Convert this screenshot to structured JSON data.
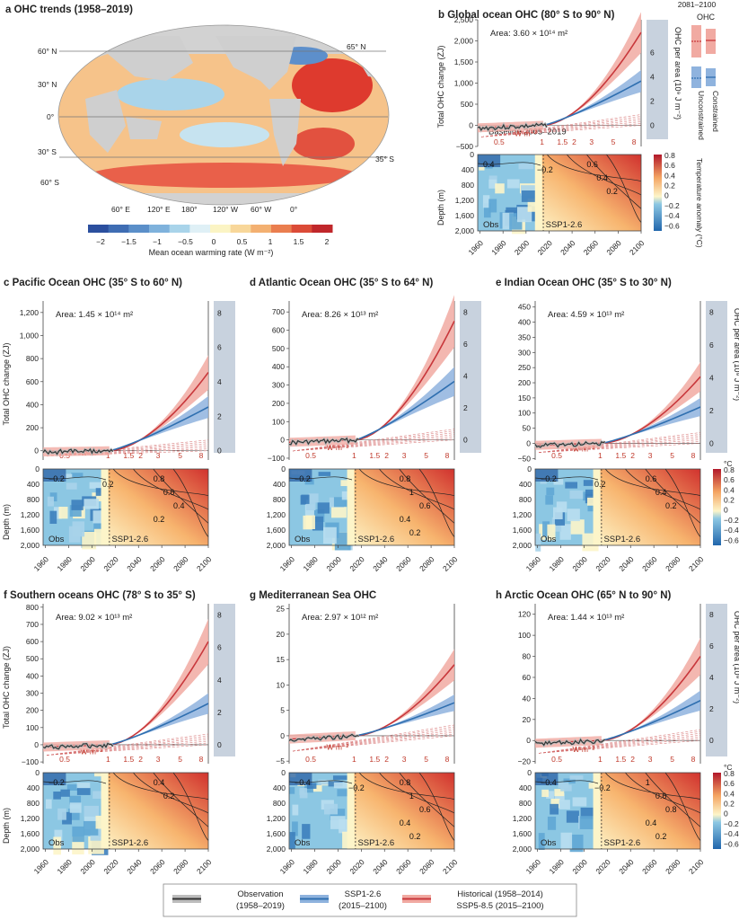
{
  "colors": {
    "obs": "#333333",
    "ssp126": "#2f6fb0",
    "ssp585": "#c8373b",
    "ssp126_band": "#8fb3de",
    "ssp585_band": "#f1aaa2",
    "ohc_panel": "#c8d2de"
  },
  "panel_a": {
    "title": "a OHC trends (1958–2019)",
    "lat_labels": [
      "60° N",
      "30° N",
      "0°",
      "30° S",
      "60° S"
    ],
    "lat_right": [
      "65° N",
      "35° S"
    ],
    "lon_labels": [
      "60° E",
      "120° E",
      "180°",
      "120° W",
      "60° W",
      "0°"
    ],
    "colorbar_ticks": [
      "−2",
      "−1.5",
      "−1",
      "−0.5",
      "0",
      "0.5",
      "1",
      "1.5",
      "2"
    ],
    "colorbar_label": "Mean ocean warming rate (W m⁻²)"
  },
  "shared": {
    "y_axis_label": "Total OHC change (ZJ)",
    "right_axis_label": "OHC per area (10⁹ J m⁻²)",
    "depth_label": "Depth (m)",
    "depth_ticks": [
      "0",
      "400",
      "800",
      "1,200",
      "1,600",
      "2,000"
    ],
    "x_ticks": [
      "1960",
      "1980",
      "2000",
      "2020",
      "2040",
      "2060",
      "2080",
      "2100"
    ],
    "obs_label": "Obs",
    "ssp_label": "SSP1-2.6",
    "w_unit": "W m⁻²",
    "w_lines": [
      "0.5",
      "1",
      "1.5",
      "2",
      "3",
      "5",
      "8"
    ],
    "temp_anom_label": "Temperature anomaly (°C)",
    "temp_unit": "°C",
    "temp_ticks": [
      "0.8",
      "0.6",
      "0.4",
      "0.2",
      "0",
      "−0.2",
      "−0.4",
      "−0.6"
    ],
    "legend_period": "2081–2100",
    "legend_ohc": "OHC",
    "legend_unconstrained": "Unconstrained",
    "legend_constrained": "Constrained"
  },
  "panels": [
    {
      "title": "b Global ocean OHC (80° S to 90° N)",
      "area": "Area: 3.60 × 10¹⁴ m²",
      "baseline": "Baseline 2005–2019",
      "y_ticks": [
        "−500",
        "0",
        "500",
        "1,000",
        "1,500",
        "2,000",
        "2,500"
      ],
      "y_vals": [
        -500,
        0,
        500,
        1000,
        1500,
        2000,
        2500
      ],
      "y_range": [
        -500,
        2500
      ],
      "r_ticks": [
        "0",
        "2",
        "4",
        "6"
      ],
      "r_vals": [
        0,
        2,
        4,
        6
      ],
      "ssp585_end": 2200,
      "ssp126_end": 1050,
      "contours_right": [
        "0.6",
        "0.4",
        "0.2"
      ],
      "contours_left": [
        "0.4",
        "−0.2"
      ]
    },
    {
      "title": "c Pacific Ocean OHC (35° S to 60° N)",
      "area": "Area: 1.45 × 10¹⁴ m²",
      "y_ticks": [
        "0",
        "200",
        "400",
        "600",
        "800",
        "1,000",
        "1,200"
      ],
      "y_vals": [
        0,
        200,
        400,
        600,
        800,
        1000,
        1200
      ],
      "y_range": [
        -80,
        1300
      ],
      "r_ticks": [
        "0",
        "2",
        "4",
        "6",
        "8"
      ],
      "r_vals": [
        0,
        2,
        4,
        6,
        8
      ],
      "ssp585_end": 680,
      "ssp126_end": 380,
      "contours_right": [
        "0.8",
        "0.6",
        "0.4",
        "0.2"
      ],
      "contours_left": [
        "−0.2",
        "0.2"
      ]
    },
    {
      "title": "d Atlantic Ocean OHC (35° S to 64° N)",
      "area": "Area: 8.26 × 10¹³ m²",
      "y_ticks": [
        "−100",
        "0",
        "100",
        "200",
        "300",
        "400",
        "500",
        "600",
        "700"
      ],
      "y_vals": [
        -100,
        0,
        100,
        200,
        300,
        400,
        500,
        600,
        700
      ],
      "y_range": [
        -110,
        760
      ],
      "r_ticks": [
        "0",
        "2",
        "4",
        "6",
        "8"
      ],
      "r_vals": [
        0,
        2,
        4,
        6,
        8
      ],
      "ssp585_end": 650,
      "ssp126_end": 320,
      "contours_right": [
        "0.8",
        "1",
        "0.6",
        "0.4",
        "0.2"
      ],
      "contours_left": [
        "−0.2"
      ]
    },
    {
      "title": "e Indian Ocean OHC (35° S to 30° N)",
      "area": "Area: 4.59 × 10¹³ m²",
      "y_ticks": [
        "−50",
        "0",
        "50",
        "100",
        "150",
        "200",
        "250",
        "300",
        "350",
        "400",
        "450"
      ],
      "y_vals": [
        -50,
        0,
        50,
        100,
        150,
        200,
        250,
        300,
        350,
        400,
        450
      ],
      "y_range": [
        -55,
        470
      ],
      "r_ticks": [
        "0",
        "2",
        "4",
        "6",
        "8"
      ],
      "r_vals": [
        0,
        2,
        4,
        6,
        8
      ],
      "ssp585_end": 220,
      "ssp126_end": 120,
      "contours_right": [
        "0.6",
        "0.4",
        "0.2"
      ],
      "contours_left": [
        "−0.2",
        "0.2"
      ]
    },
    {
      "title": "f Southern oceans OHC (78° S to 35° S)",
      "area": "Area: 9.02 × 10¹³ m²",
      "y_ticks": [
        "−100",
        "0",
        "100",
        "200",
        "300",
        "400",
        "500",
        "600",
        "700",
        "800"
      ],
      "y_vals": [
        -100,
        0,
        100,
        200,
        300,
        400,
        500,
        600,
        700,
        800
      ],
      "y_range": [
        -110,
        820
      ],
      "r_ticks": [
        "0",
        "2",
        "4",
        "6",
        "8"
      ],
      "r_vals": [
        0,
        2,
        4,
        6,
        8
      ],
      "ssp585_end": 600,
      "ssp126_end": 240,
      "contours_right": [
        "0.4",
        "0.2"
      ],
      "contours_left": [
        "−0.2"
      ]
    },
    {
      "title": "g Mediterranean Sea OHC",
      "area": "Area: 2.97 × 10¹² m²",
      "y_ticks": [
        "−5",
        "0",
        "5",
        "10",
        "15",
        "20",
        "25"
      ],
      "y_vals": [
        -5,
        0,
        5,
        10,
        15,
        20,
        25
      ],
      "y_range": [
        -5.5,
        26
      ],
      "r_ticks": [],
      "r_vals": [],
      "ssp585_end": 14,
      "ssp126_end": 6.5,
      "contours_right": [
        "0.8",
        "1",
        "0.6",
        "0.4",
        "0.2"
      ],
      "contours_left": [
        "−0.4",
        "−0.2"
      ]
    },
    {
      "title": "h Arctic Ocean OHC (65° N to 90° N)",
      "area": "Area: 1.44 × 10¹³ m²",
      "y_ticks": [
        "−20",
        "0",
        "20",
        "40",
        "60",
        "80",
        "100",
        "120"
      ],
      "y_vals": [
        -20,
        0,
        20,
        40,
        60,
        80,
        100,
        120
      ],
      "y_range": [
        -22,
        130
      ],
      "r_ticks": [
        "0",
        "2",
        "4",
        "6",
        "8"
      ],
      "r_vals": [
        0,
        2,
        4,
        6,
        8
      ],
      "ssp585_end": 80,
      "ssp126_end": 38,
      "contours_right": [
        "1",
        "0.6",
        "0.8",
        "0.4",
        "0.2"
      ],
      "contours_left": [
        "−0.4",
        "−0.2"
      ]
    }
  ],
  "legend": [
    {
      "label": "Observation",
      "sub": "(1958–2019)"
    },
    {
      "label": "SSP1-2.6",
      "sub": "(2015–2100)"
    },
    {
      "label": "Historical (1958–2014)",
      "sub": "SSP5-8.5 (2015–2100)"
    }
  ],
  "chart_data": [
    {
      "type": "line",
      "title": "b Global ocean OHC (80° S to 90° N)",
      "xlabel": "",
      "ylabel": "Total OHC change (ZJ)",
      "xlim": [
        1958,
        2100
      ],
      "ylim": [
        -500,
        2500
      ],
      "series": [
        {
          "name": "Observation",
          "x": [
            1958,
            1980,
            2000,
            2019
          ],
          "y": [
            -300,
            -250,
            -150,
            50
          ]
        },
        {
          "name": "SSP1-2.6",
          "x": [
            2015,
            2040,
            2060,
            2080,
            2100
          ],
          "y": [
            0,
            300,
            550,
            800,
            1050
          ]
        },
        {
          "name": "SSP5-8.5",
          "x": [
            2015,
            2040,
            2060,
            2080,
            2100
          ],
          "y": [
            0,
            380,
            800,
            1400,
            2200
          ]
        }
      ]
    },
    {
      "type": "line",
      "title": "c Pacific Ocean OHC (35° S to 60° N)",
      "xlabel": "",
      "ylabel": "Total OHC change (ZJ)",
      "xlim": [
        1958,
        2100
      ],
      "ylim": [
        -80,
        1300
      ],
      "series": [
        {
          "name": "SSP1-2.6",
          "x": [
            2015,
            2060,
            2100
          ],
          "y": [
            0,
            200,
            380
          ]
        },
        {
          "name": "SSP5-8.5",
          "x": [
            2015,
            2060,
            2100
          ],
          "y": [
            0,
            280,
            680
          ]
        }
      ]
    },
    {
      "type": "line",
      "title": "d Atlantic Ocean OHC (35° S to 64° N)",
      "xlabel": "",
      "ylabel": "",
      "xlim": [
        1958,
        2100
      ],
      "ylim": [
        -110,
        760
      ],
      "series": [
        {
          "name": "SSP1-2.6",
          "x": [
            2015,
            2060,
            2100
          ],
          "y": [
            0,
            180,
            320
          ]
        },
        {
          "name": "SSP5-8.5",
          "x": [
            2015,
            2060,
            2100
          ],
          "y": [
            0,
            280,
            650
          ]
        }
      ]
    },
    {
      "type": "line",
      "title": "e Indian Ocean OHC (35° S to 30° N)",
      "xlabel": "",
      "ylabel": "",
      "xlim": [
        1958,
        2100
      ],
      "ylim": [
        -55,
        470
      ],
      "series": [
        {
          "name": "SSP1-2.6",
          "x": [
            2015,
            2060,
            2100
          ],
          "y": [
            0,
            60,
            120
          ]
        },
        {
          "name": "SSP5-8.5",
          "x": [
            2015,
            2060,
            2100
          ],
          "y": [
            0,
            90,
            220
          ]
        }
      ]
    },
    {
      "type": "line",
      "title": "f Southern oceans OHC (78° S to 35° S)",
      "xlabel": "",
      "ylabel": "Total OHC change (ZJ)",
      "xlim": [
        1958,
        2100
      ],
      "ylim": [
        -110,
        820
      ],
      "series": [
        {
          "name": "SSP1-2.6",
          "x": [
            2015,
            2060,
            2100
          ],
          "y": [
            0,
            150,
            240
          ]
        },
        {
          "name": "SSP5-8.5",
          "x": [
            2015,
            2060,
            2100
          ],
          "y": [
            0,
            250,
            600
          ]
        }
      ]
    },
    {
      "type": "line",
      "title": "g Mediterranean Sea OHC",
      "xlabel": "",
      "ylabel": "",
      "xlim": [
        1958,
        2100
      ],
      "ylim": [
        -5.5,
        26
      ],
      "series": [
        {
          "name": "SSP1-2.6",
          "x": [
            2015,
            2060,
            2100
          ],
          "y": [
            0,
            4,
            6.5
          ]
        },
        {
          "name": "SSP5-8.5",
          "x": [
            2015,
            2060,
            2100
          ],
          "y": [
            0,
            6,
            14
          ]
        }
      ]
    },
    {
      "type": "line",
      "title": "h Arctic Ocean OHC (65° N to 90° N)",
      "xlabel": "",
      "ylabel": "",
      "xlim": [
        1958,
        2100
      ],
      "ylim": [
        -22,
        130
      ],
      "series": [
        {
          "name": "SSP1-2.6",
          "x": [
            2015,
            2060,
            2100
          ],
          "y": [
            0,
            22,
            38
          ]
        },
        {
          "name": "SSP5-8.5",
          "x": [
            2015,
            2060,
            2100
          ],
          "y": [
            0,
            35,
            80
          ]
        }
      ]
    }
  ]
}
